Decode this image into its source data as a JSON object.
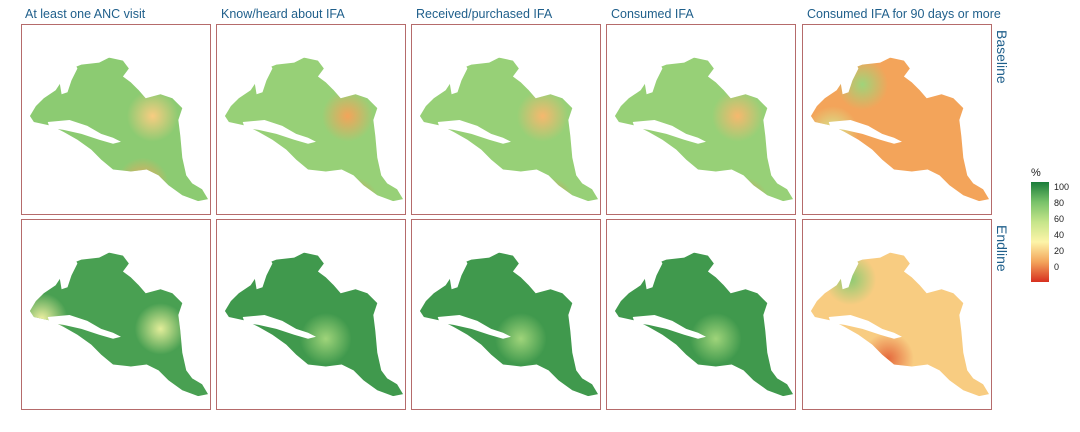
{
  "columns": [
    "At least one ANC visit",
    "Know/heard about IFA",
    "Received/purchased IFA",
    "Consumed IFA",
    "Consumed IFA for 90 days or more"
  ],
  "rows": [
    "Baseline",
    "Endline"
  ],
  "legend": {
    "title": "%",
    "ticks": [
      "100",
      "80",
      "60",
      "40",
      "20",
      "0"
    ],
    "colors": [
      "#1a7d3a",
      "#78c26a",
      "#c6e58a",
      "#fdf4a8",
      "#f3a45a",
      "#d7301f"
    ]
  },
  "panel_border_color": "#b56b6b",
  "map_levels": {
    "baseline": [
      {
        "base": 75,
        "hotspots": [
          {
            "v": 30
          },
          {
            "v": 20
          }
        ]
      },
      {
        "base": 72,
        "hotspots": [
          {
            "v": 20
          },
          {
            "v": 15
          }
        ]
      },
      {
        "base": 72,
        "hotspots": [
          {
            "v": 25
          },
          {
            "v": 15
          }
        ]
      },
      {
        "base": 72,
        "hotspots": [
          {
            "v": 25
          },
          {
            "v": 15
          }
        ]
      },
      {
        "base": 20,
        "hotspots": [
          {
            "v": 70
          },
          {
            "v": 55
          }
        ]
      }
    ],
    "endline": [
      {
        "base": 90,
        "hotspots": [
          {
            "v": 45
          },
          {
            "v": 50
          }
        ]
      },
      {
        "base": 92,
        "hotspots": [
          {
            "v": 70
          }
        ]
      },
      {
        "base": 92,
        "hotspots": [
          {
            "v": 70
          }
        ]
      },
      {
        "base": 92,
        "hotspots": [
          {
            "v": 70
          }
        ]
      },
      {
        "base": 30,
        "hotspots": [
          {
            "v": 75
          },
          {
            "v": 10
          }
        ]
      }
    ]
  }
}
